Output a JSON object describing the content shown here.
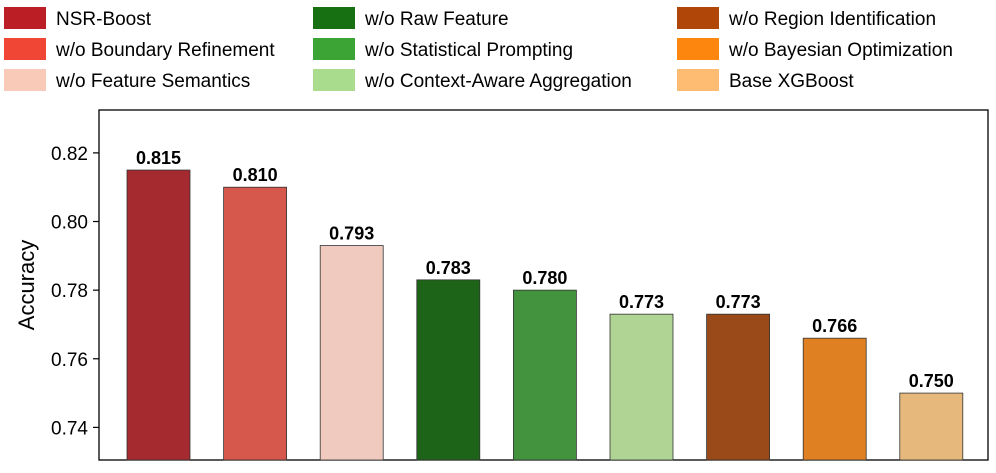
{
  "chart_data": {
    "type": "bar",
    "ylabel": "Accuracy",
    "xlabel": "",
    "ylim": [
      0.7305,
      0.8325
    ],
    "yticks": [
      "0.74",
      "0.76",
      "0.78",
      "0.80",
      "0.82"
    ],
    "ytick_values": [
      0.74,
      0.76,
      0.78,
      0.8,
      0.82
    ],
    "grid": false,
    "legend_placement": "top",
    "categories": [
      "NSR-Boost",
      "w/o Boundary Refinement",
      "w/o Feature Semantics",
      "w/o Raw Feature",
      "w/o Statistical Prompting",
      "w/o Context-Aware Aggregation",
      "w/o Region Identification",
      "w/o Bayesian Optimization",
      "Base XGBoost"
    ],
    "values": [
      0.815,
      0.81,
      0.793,
      0.783,
      0.78,
      0.773,
      0.773,
      0.766,
      0.75
    ],
    "value_labels": [
      "0.815",
      "0.810",
      "0.793",
      "0.783",
      "0.780",
      "0.773",
      "0.773",
      "0.766",
      "0.750"
    ],
    "bar_colors": [
      "#a52a30",
      "#d6574b",
      "#f0cabe",
      "#1e6418",
      "#43923e",
      "#b0d494",
      "#9a4a18",
      "#df8022",
      "#e7b87c"
    ],
    "legend_colors": [
      "#bb1e24",
      "#f04635",
      "#f9cab8",
      "#177012",
      "#3ca335",
      "#aadc8e",
      "#b04608",
      "#fd860f",
      "#fdbc72"
    ]
  }
}
